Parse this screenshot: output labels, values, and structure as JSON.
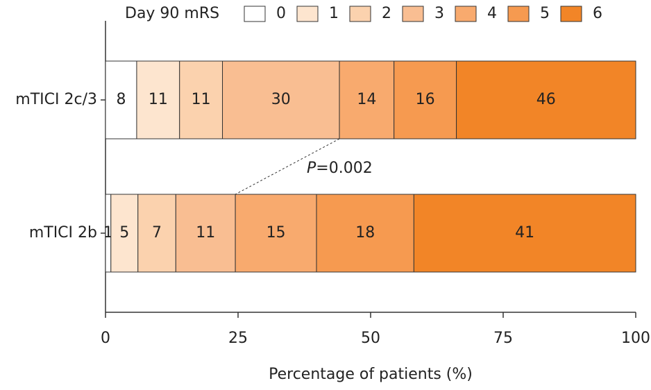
{
  "chart_data": {
    "type": "bar",
    "orientation": "horizontal",
    "stack": "percent",
    "legend_title": "Day 90 mRS",
    "x_label": "Percentage of patients (%)",
    "categories": [
      "mTICI 2c/3",
      "mTICI 2b"
    ],
    "series": [
      {
        "name": "0",
        "color": "#ffffff",
        "values": [
          8,
          1
        ]
      },
      {
        "name": "1",
        "color": "#fde5cf",
        "values": [
          11,
          5
        ]
      },
      {
        "name": "2",
        "color": "#fbd2ae",
        "values": [
          11,
          7
        ]
      },
      {
        "name": "3",
        "color": "#f9be92",
        "values": [
          30,
          11
        ]
      },
      {
        "name": "4",
        "color": "#f8aa6e",
        "values": [
          14,
          15
        ]
      },
      {
        "name": "5",
        "color": "#f69a50",
        "values": [
          16,
          18
        ]
      },
      {
        "name": "6",
        "color": "#f28527",
        "values": [
          46,
          41
        ]
      }
    ],
    "xlim": [
      0,
      100
    ],
    "xticks": [
      0,
      25,
      50,
      75,
      100
    ],
    "annotation": [
      "P",
      "=0.002"
    ]
  }
}
